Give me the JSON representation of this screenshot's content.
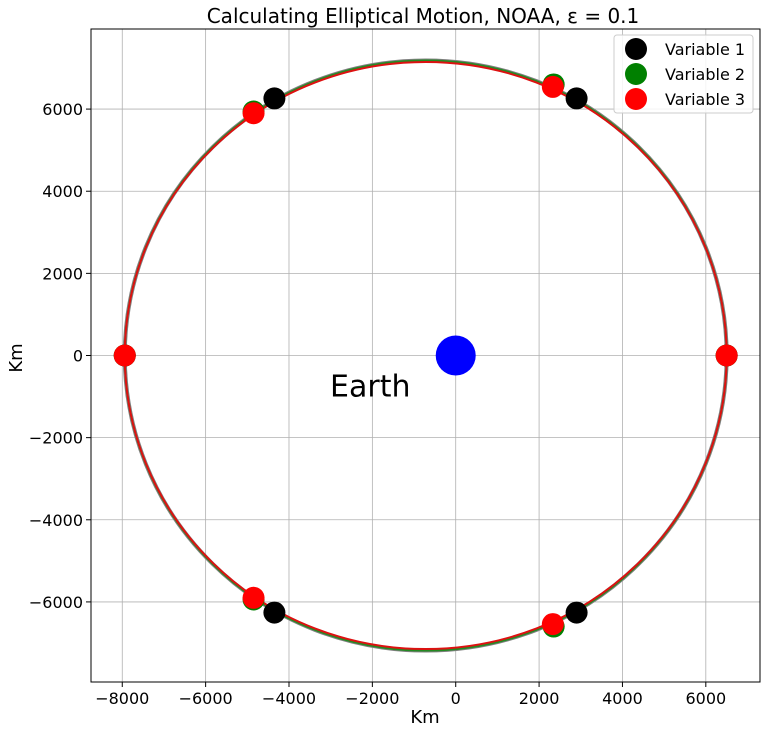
{
  "chart_data": {
    "type": "scatter",
    "title": "Calculating Elliptical Motion, NOAA, ε = 0.1",
    "xlabel": "Km",
    "ylabel": "Km",
    "xlim": [
      -8750,
      7300
    ],
    "ylim": [
      -7950,
      7950
    ],
    "xticks": [
      -8000,
      -6000,
      -4000,
      -2000,
      0,
      2000,
      4000,
      6000
    ],
    "yticks": [
      -6000,
      -4000,
      -2000,
      0,
      2000,
      4000,
      6000
    ],
    "grid": true,
    "legend_position": "top-right",
    "orbit": {
      "shape": "ellipse",
      "center_x": -720,
      "center_y": 0,
      "semi_major_axis": 7220,
      "semi_minor_axis": 7184,
      "colors": [
        "#808080",
        "#228b22",
        "#dd1111"
      ]
    },
    "earth": {
      "x": 0,
      "y": 0,
      "color": "#0000ff",
      "label": "Earth",
      "label_x": -2050,
      "label_y": -750
    },
    "series": [
      {
        "name": "Variable 1",
        "color": "#000000",
        "x": [
          6500,
          2900,
          -4350,
          -7940,
          -4350,
          2900
        ],
        "y": [
          0,
          6260,
          6260,
          0,
          -6260,
          -6260
        ]
      },
      {
        "name": "Variable 2",
        "color": "#008000",
        "x": [
          6500,
          2350,
          -4850,
          -7940,
          -4850,
          2350
        ],
        "y": [
          0,
          6600,
          5940,
          0,
          -5940,
          -6600
        ]
      },
      {
        "name": "Variable 3",
        "color": "#ff0000",
        "x": [
          6500,
          2330,
          -4850,
          -7940,
          -4850,
          2330
        ],
        "y": [
          0,
          6540,
          5900,
          0,
          -5900,
          -6540
        ]
      }
    ]
  }
}
